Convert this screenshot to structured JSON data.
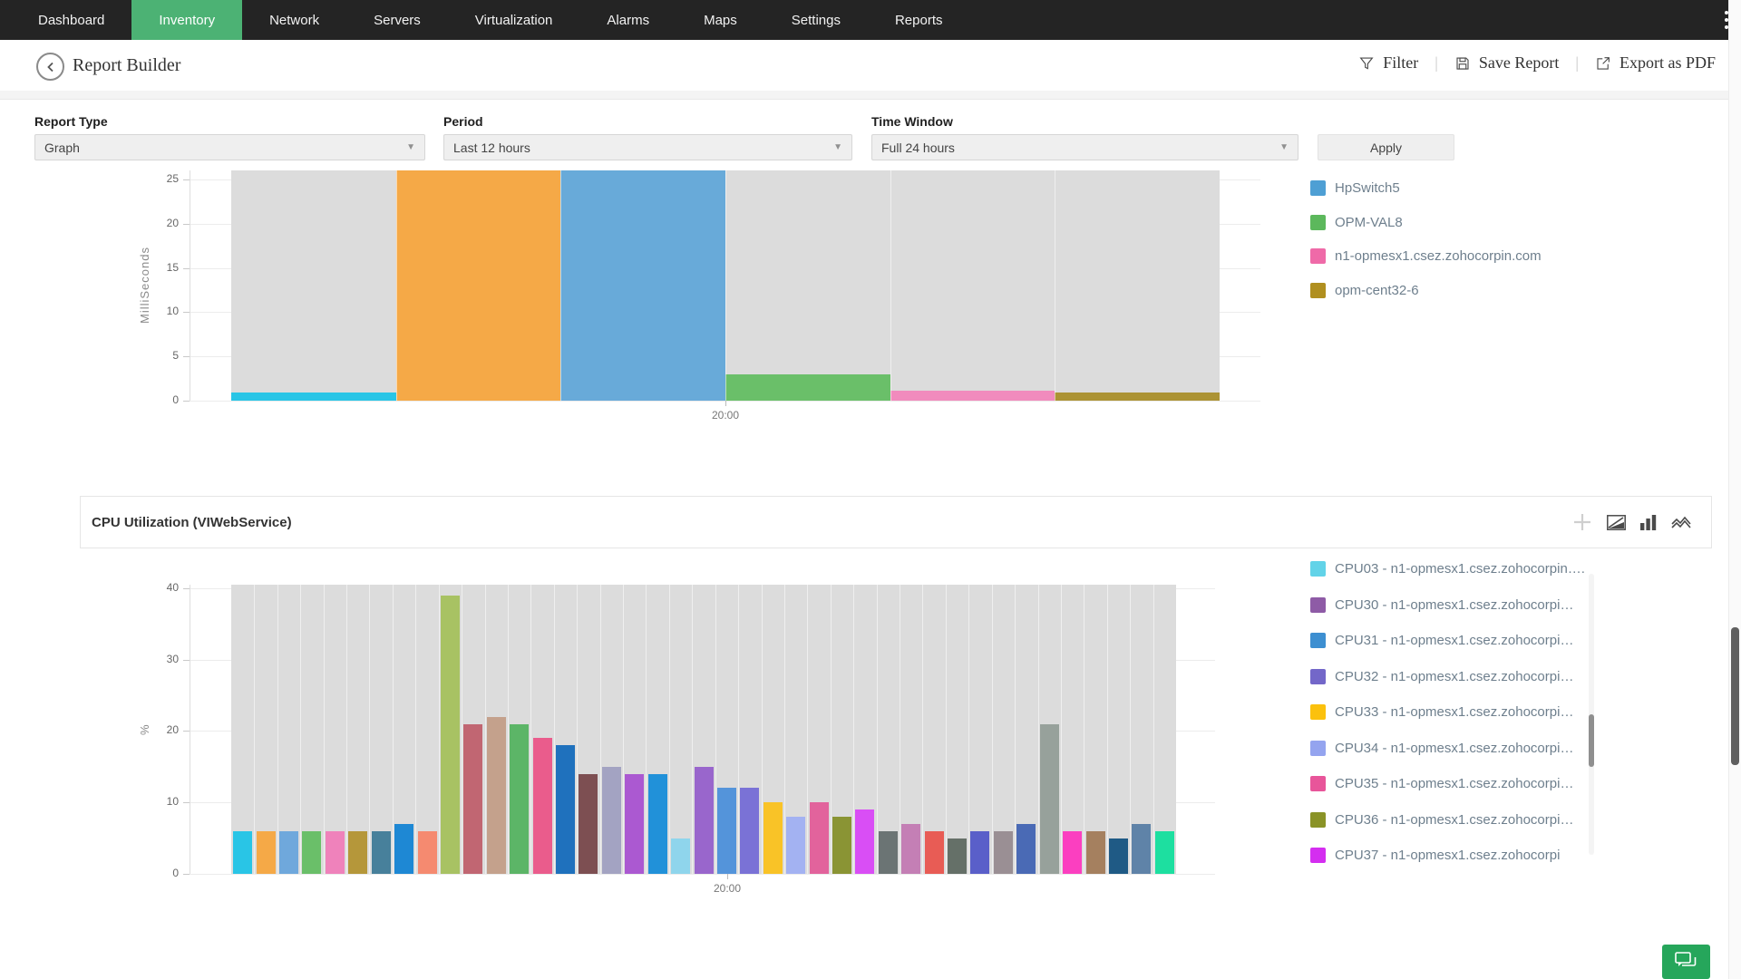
{
  "nav": {
    "items": [
      "Dashboard",
      "Inventory",
      "Network",
      "Servers",
      "Virtualization",
      "Alarms",
      "Maps",
      "Settings",
      "Reports"
    ],
    "active_index": 1,
    "active_color": "#4cb274"
  },
  "header": {
    "title": "Report Builder",
    "actions": {
      "filter": "Filter",
      "save": "Save Report",
      "export": "Export as PDF"
    }
  },
  "filters": {
    "report_type_label": "Report Type",
    "report_type_value": "Graph",
    "period_label": "Period",
    "period_value": "Last 12 hours",
    "time_window_label": "Time Window",
    "time_window_value": "Full 24 hours",
    "apply_label": "Apply"
  },
  "section2_title": "CPU Utilization (VIWebService)",
  "chart_data": [
    {
      "type": "bar",
      "title": "",
      "ylabel": "MilliSeconds",
      "ylim": [
        0,
        25
      ],
      "yticks": [
        0,
        5,
        10,
        15,
        20,
        25
      ],
      "x_tick_label": "20:00",
      "grid": true,
      "legend_position": "right",
      "bars": [
        {
          "value": 0.9,
          "color": "#29c5e6",
          "clipped": false
        },
        {
          "value": 26,
          "color": "#f5a947",
          "clipped": true
        },
        {
          "value": 26,
          "color": "#68aad9",
          "clipped": true
        },
        {
          "value": 3,
          "color": "#6abf69",
          "clipped": false
        },
        {
          "value": 1.1,
          "color": "#f18bbd",
          "clipped": false
        },
        {
          "value": 0.9,
          "color": "#ac9334",
          "clipped": false
        }
      ],
      "legend": [
        {
          "label": "HpSwitch5",
          "color": "#4e9fd4"
        },
        {
          "label": "OPM-VAL8",
          "color": "#5cb85c"
        },
        {
          "label": "n1-opmesx1.csez.zohocorpin.com",
          "color": "#ef6aa8"
        },
        {
          "label": "opm-cent32-6",
          "color": "#b08f1f"
        }
      ]
    },
    {
      "type": "bar",
      "title": "CPU Utilization (VIWebService)",
      "ylabel": "%",
      "ylim": [
        0,
        40
      ],
      "yticks": [
        0,
        10,
        20,
        30,
        40
      ],
      "x_tick_label": "20:00",
      "grid": true,
      "legend_position": "right",
      "bars": [
        {
          "value": 6,
          "color": "#29c5e6"
        },
        {
          "value": 6,
          "color": "#f5a947"
        },
        {
          "value": 6,
          "color": "#6fa8dc"
        },
        {
          "value": 6,
          "color": "#6abf69"
        },
        {
          "value": 6,
          "color": "#ef82bb"
        },
        {
          "value": 6,
          "color": "#b5973a"
        },
        {
          "value": 6,
          "color": "#47809b"
        },
        {
          "value": 7,
          "color": "#1e88d4"
        },
        {
          "value": 6,
          "color": "#f58a70"
        },
        {
          "value": 39,
          "color": "#a8c263"
        },
        {
          "value": 21,
          "color": "#c16672"
        },
        {
          "value": 22,
          "color": "#c4a18c"
        },
        {
          "value": 21,
          "color": "#5cb567"
        },
        {
          "value": 19,
          "color": "#ea5c8c"
        },
        {
          "value": 18,
          "color": "#1f71bd"
        },
        {
          "value": 14,
          "color": "#7d4f52"
        },
        {
          "value": 15,
          "color": "#a3a3c2"
        },
        {
          "value": 14,
          "color": "#ab59d1"
        },
        {
          "value": 14,
          "color": "#2191d9"
        },
        {
          "value": 5,
          "color": "#8fd5ec"
        },
        {
          "value": 15,
          "color": "#9966cc"
        },
        {
          "value": 12,
          "color": "#5494da"
        },
        {
          "value": 12,
          "color": "#7a72d6"
        },
        {
          "value": 10,
          "color": "#f9c327"
        },
        {
          "value": 8,
          "color": "#a3b2f2"
        },
        {
          "value": 10,
          "color": "#e2639c"
        },
        {
          "value": 8,
          "color": "#8a9434"
        },
        {
          "value": 9,
          "color": "#d94ef5"
        },
        {
          "value": 6,
          "color": "#6b7474"
        },
        {
          "value": 7,
          "color": "#c47fb5"
        },
        {
          "value": 6,
          "color": "#e85c55"
        },
        {
          "value": 5,
          "color": "#657068"
        },
        {
          "value": 6,
          "color": "#5a5fc9"
        },
        {
          "value": 6,
          "color": "#9a8f94"
        },
        {
          "value": 7,
          "color": "#4a6ab5"
        },
        {
          "value": 21,
          "color": "#97a19b"
        },
        {
          "value": 6,
          "color": "#fb3fc0"
        },
        {
          "value": 6,
          "color": "#a5805f"
        },
        {
          "value": 5,
          "color": "#1f5a85"
        },
        {
          "value": 7,
          "color": "#5f83a8"
        },
        {
          "value": 6,
          "color": "#1ddfa0"
        }
      ],
      "legend": [
        {
          "label": "CPU03 - n1-opmesx1.csez.zohocorpin….",
          "color": "#62d3e8"
        },
        {
          "label": "CPU30 - n1-opmesx1.csez.zohocorpi…",
          "color": "#8e5ba6"
        },
        {
          "label": "CPU31 - n1-opmesx1.csez.zohocorpi…",
          "color": "#3d8fd1"
        },
        {
          "label": "CPU32 - n1-opmesx1.csez.zohocorpi…",
          "color": "#7367c9"
        },
        {
          "label": "CPU33 - n1-opmesx1.csez.zohocorpi…",
          "color": "#fbc10d"
        },
        {
          "label": "CPU34 - n1-opmesx1.csez.zohocorpi…",
          "color": "#94a4ef"
        },
        {
          "label": "CPU35 - n1-opmesx1.csez.zohocorpi…",
          "color": "#e8559a"
        },
        {
          "label": "CPU36 - n1-opmesx1.csez.zohocorpi…",
          "color": "#8a9327"
        },
        {
          "label": "CPU37 - n1-opmesx1.csez.zohocorpi",
          "color": "#d42ef0"
        }
      ]
    }
  ]
}
